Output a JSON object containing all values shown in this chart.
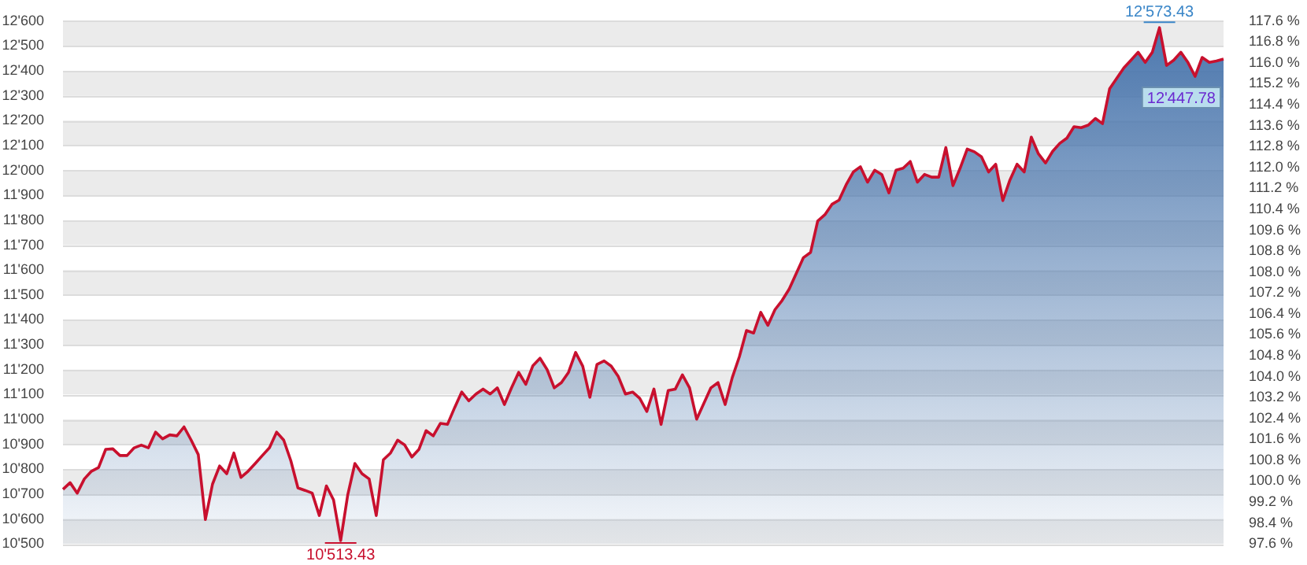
{
  "chart_data": {
    "type": "area",
    "categories": [
      null,
      null,
      null,
      null,
      null,
      null,
      null,
      null,
      null,
      null,
      null,
      null,
      null,
      null,
      null,
      null,
      null,
      null,
      null,
      null,
      null,
      null,
      null,
      null,
      null,
      null,
      null,
      null,
      null,
      null,
      null,
      null,
      null,
      null,
      null,
      null,
      null,
      null,
      null,
      null,
      null,
      null,
      null,
      null,
      null,
      null,
      null,
      null,
      null,
      null,
      null,
      null,
      null,
      null,
      null,
      null,
      null,
      null,
      null,
      null,
      null,
      null,
      null,
      null,
      null,
      null,
      null,
      null,
      null,
      null,
      null,
      null,
      null,
      null,
      null,
      null,
      null,
      null,
      null,
      null,
      null,
      null,
      null,
      null,
      null,
      null,
      null,
      null,
      null,
      null,
      null,
      null,
      null,
      null,
      null,
      null,
      null,
      null,
      null,
      null,
      null,
      null,
      null,
      null,
      null,
      null,
      null,
      null,
      null,
      null,
      null,
      null,
      null,
      null,
      null,
      null,
      null,
      null,
      null,
      null,
      null,
      null,
      null,
      null,
      null,
      null,
      null,
      null,
      null,
      null,
      null,
      null,
      null,
      null,
      null,
      null,
      null,
      null,
      null,
      null,
      null,
      null,
      null,
      null,
      null,
      null,
      null,
      null,
      null,
      null,
      null,
      null,
      null,
      null,
      null,
      null,
      null,
      null,
      null,
      null,
      null,
      null,
      null,
      null
    ],
    "series": [
      {
        "color": "#c8102e",
        "values": [
          10719,
          10746,
          10704,
          10761,
          10792,
          10807,
          10880,
          10882,
          10855,
          10855,
          10886,
          10897,
          10886,
          10949,
          10922,
          10938,
          10934,
          10970,
          10917,
          10859,
          10598,
          10740,
          10813,
          10782,
          10865,
          10767,
          10792,
          10823,
          10855,
          10886,
          10949,
          10917,
          10834,
          10725,
          10715,
          10704,
          10614,
          10733,
          10677,
          10513.43,
          10698,
          10823,
          10782,
          10761,
          10614,
          10838,
          10865,
          10917,
          10897,
          10849,
          10880,
          10955,
          10934,
          10984,
          10980,
          11047,
          11110,
          11075,
          11102,
          11122,
          11102,
          11127,
          11060,
          11127,
          11189,
          11141,
          11216,
          11246,
          11200,
          11127,
          11148,
          11189,
          11269,
          11214,
          11089,
          11221,
          11235,
          11214,
          11172,
          11102,
          11110,
          11085,
          11032,
          11122,
          10980,
          11116,
          11122,
          11179,
          11127,
          11001,
          11064,
          11127,
          11148,
          11060,
          11168,
          11252,
          11357,
          11347,
          11430,
          11378,
          11441,
          11478,
          11524,
          11587,
          11650,
          11671,
          11797,
          11822,
          11864,
          11881,
          11943,
          11994,
          12015,
          11953,
          12001,
          11984,
          11910,
          12001,
          12009,
          12036,
          11953,
          11984,
          11973,
          11973,
          12092,
          11939,
          12009,
          12086,
          12075,
          12055,
          11994,
          12025,
          11879,
          11962,
          12025,
          11994,
          12134,
          12067,
          12030,
          12077,
          12109,
          12130,
          12176,
          12172,
          12182,
          12209,
          12188,
          12328,
          12370,
          12412,
          12443,
          12475,
          12434,
          12475,
          12573.43,
          12422,
          12443,
          12475,
          12434,
          12378,
          12454,
          12434,
          12440,
          12447.78
        ]
      }
    ],
    "ylim": [
      10500,
      12600
    ],
    "yticks": [
      {
        "value": 10500,
        "label": "10'500"
      },
      {
        "value": 10600,
        "label": "10'600"
      },
      {
        "value": 10700,
        "label": "10'700"
      },
      {
        "value": 10800,
        "label": "10'800"
      },
      {
        "value": 10900,
        "label": "10'900"
      },
      {
        "value": 11000,
        "label": "11'000"
      },
      {
        "value": 11100,
        "label": "11'100"
      },
      {
        "value": 11200,
        "label": "11'200"
      },
      {
        "value": 11300,
        "label": "11'300"
      },
      {
        "value": 11400,
        "label": "11'400"
      },
      {
        "value": 11500,
        "label": "11'500"
      },
      {
        "value": 11600,
        "label": "11'600"
      },
      {
        "value": 11700,
        "label": "11'700"
      },
      {
        "value": 11800,
        "label": "11'800"
      },
      {
        "value": 11900,
        "label": "11'900"
      },
      {
        "value": 12000,
        "label": "12'000"
      },
      {
        "value": 12100,
        "label": "12'100"
      },
      {
        "value": 12200,
        "label": "12'200"
      },
      {
        "value": 12300,
        "label": "12'300"
      },
      {
        "value": 12400,
        "label": "12'400"
      },
      {
        "value": 12500,
        "label": "12'500"
      },
      {
        "value": 12600,
        "label": "12'600"
      }
    ],
    "y2lim": [
      97.6,
      117.6
    ],
    "y2ticks": [
      {
        "value": 97.6,
        "label": "97.6 %"
      },
      {
        "value": 98.4,
        "label": "98.4 %"
      },
      {
        "value": 99.2,
        "label": "99.2 %"
      },
      {
        "value": 100,
        "label": "100.0 %"
      },
      {
        "value": 100.8,
        "label": "100.8 %"
      },
      {
        "value": 101.6,
        "label": "101.6 %"
      },
      {
        "value": 102.4,
        "label": "102.4 %"
      },
      {
        "value": 103.2,
        "label": "103.2 %"
      },
      {
        "value": 104,
        "label": "104.0 %"
      },
      {
        "value": 104.8,
        "label": "104.8 %"
      },
      {
        "value": 105.6,
        "label": "105.6 %"
      },
      {
        "value": 106.4,
        "label": "106.4 %"
      },
      {
        "value": 107.2,
        "label": "107.2 %"
      },
      {
        "value": 108,
        "label": "108.0 %"
      },
      {
        "value": 108.8,
        "label": "108.8 %"
      },
      {
        "value": 109.6,
        "label": "109.6 %"
      },
      {
        "value": 110.4,
        "label": "110.4 %"
      },
      {
        "value": 111.2,
        "label": "111.2 %"
      },
      {
        "value": 112,
        "label": "112.0 %"
      },
      {
        "value": 112.8,
        "label": "112.8 %"
      },
      {
        "value": 113.6,
        "label": "113.6 %"
      },
      {
        "value": 114.4,
        "label": "114.4 %"
      },
      {
        "value": 115.2,
        "label": "115.2 %"
      },
      {
        "value": 116,
        "label": "116.0 %"
      },
      {
        "value": 116.8,
        "label": "116.8 %"
      },
      {
        "value": 117.6,
        "label": "117.6 %"
      }
    ],
    "grid": "y",
    "legend": false,
    "marker": "none",
    "line_style": "solid",
    "tick_labels": "y",
    "annotations": [
      {
        "text": "10'513.43",
        "y": 10513.43
      },
      {
        "text": "12'573.43",
        "y": 12573.43
      },
      {
        "text": "12'447.78",
        "y": 12447.78
      }
    ]
  }
}
